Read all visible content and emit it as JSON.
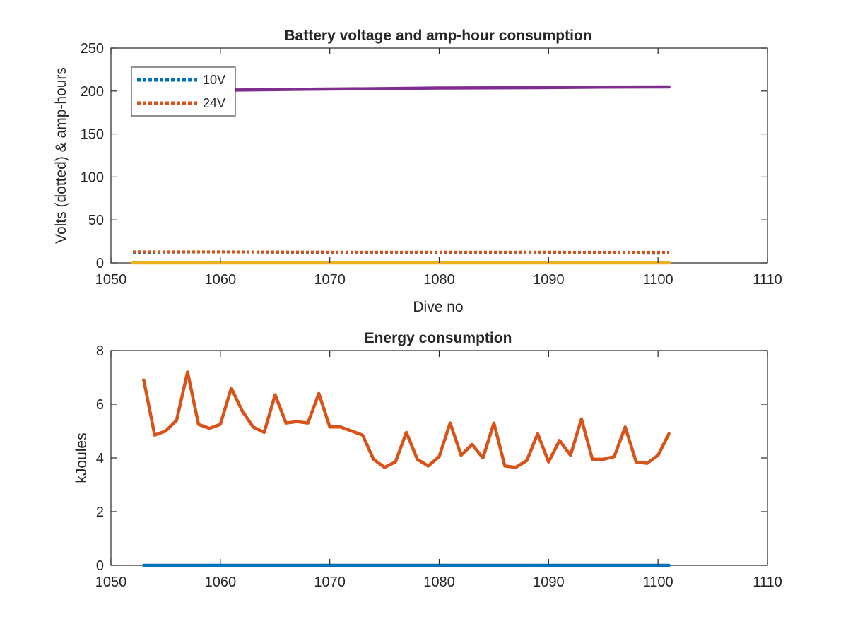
{
  "chart_data": [
    {
      "type": "line",
      "title": "Battery voltage and amp-hour consumption",
      "xlabel": "Dive no",
      "ylabel": "Volts (dotted) & amp-hours",
      "xlim": [
        1050,
        1110
      ],
      "ylim": [
        0,
        250
      ],
      "xticks": [
        "1050",
        "1060",
        "1070",
        "1080",
        "1090",
        "1100",
        "1110"
      ],
      "yticks": [
        "0",
        "50",
        "100",
        "150",
        "200",
        "250"
      ],
      "grid": false,
      "legend": {
        "placement": "top-left",
        "entries": [
          "10V",
          "24V"
        ]
      },
      "series": [
        {
          "name": "10V",
          "style": "dotted",
          "color": "#0072BD",
          "x": [
            1052,
            1055,
            1060,
            1064,
            1070,
            1075,
            1079,
            1085,
            1088,
            1095,
            1100,
            1101
          ],
          "y": [
            12,
            12.5,
            12.8,
            12.5,
            12.2,
            12.2,
            11.8,
            12.2,
            12.5,
            12,
            11.2,
            12
          ]
        },
        {
          "name": "24V",
          "style": "dotted",
          "color": "#D95319",
          "x": [
            1052,
            1060,
            1070,
            1080,
            1090,
            1101
          ],
          "y": [
            12.8,
            12.8,
            12.6,
            12.6,
            12.5,
            12.4
          ]
        },
        {
          "style": "solid",
          "color": "#7E2F8E",
          "x": [
            1052,
            1060,
            1067,
            1075,
            1080,
            1090,
            1095,
            1101
          ],
          "y": [
            200.5,
            201,
            202,
            202.8,
            203.5,
            204,
            204.5,
            204.8
          ]
        },
        {
          "style": "solid",
          "color": "#EDB120",
          "x": [
            1052,
            1101
          ],
          "y": [
            0,
            0
          ]
        }
      ]
    },
    {
      "type": "line",
      "title": "Energy consumption",
      "xlabel": "",
      "ylabel": "kJoules",
      "xlim": [
        1050,
        1110
      ],
      "ylim": [
        0,
        8
      ],
      "xticks": [
        "1050",
        "1060",
        "1070",
        "1080",
        "1090",
        "1100",
        "1110"
      ],
      "yticks": [
        "0",
        "2",
        "4",
        "6",
        "8"
      ],
      "grid": false,
      "series": [
        {
          "style": "solid",
          "color": "#D95319",
          "x": [
            1053,
            1054,
            1055,
            1056,
            1057,
            1058,
            1059,
            1060,
            1061,
            1062,
            1063,
            1064,
            1065,
            1066,
            1067,
            1068,
            1069,
            1070,
            1071,
            1072,
            1073,
            1074,
            1075,
            1076,
            1077,
            1078,
            1079,
            1080,
            1081,
            1082,
            1083,
            1084,
            1085,
            1086,
            1087,
            1088,
            1089,
            1090,
            1091,
            1092,
            1093,
            1094,
            1095,
            1096,
            1097,
            1098,
            1099,
            1100,
            1101
          ],
          "y": [
            6.9,
            4.85,
            5.0,
            5.4,
            7.2,
            5.25,
            5.1,
            5.25,
            6.6,
            5.75,
            5.15,
            4.95,
            6.35,
            5.3,
            5.35,
            5.3,
            6.4,
            5.15,
            5.15,
            5.0,
            4.85,
            3.95,
            3.65,
            3.85,
            4.95,
            3.95,
            3.7,
            4.05,
            5.3,
            4.1,
            4.5,
            4.0,
            5.3,
            3.7,
            3.65,
            3.9,
            4.9,
            3.85,
            4.65,
            4.1,
            5.45,
            3.95,
            3.95,
            4.05,
            5.15,
            3.85,
            3.8,
            4.1,
            4.9
          ]
        },
        {
          "style": "solid",
          "color": "#0072BD",
          "x": [
            1053,
            1101
          ],
          "y": [
            0,
            0
          ]
        }
      ]
    }
  ]
}
